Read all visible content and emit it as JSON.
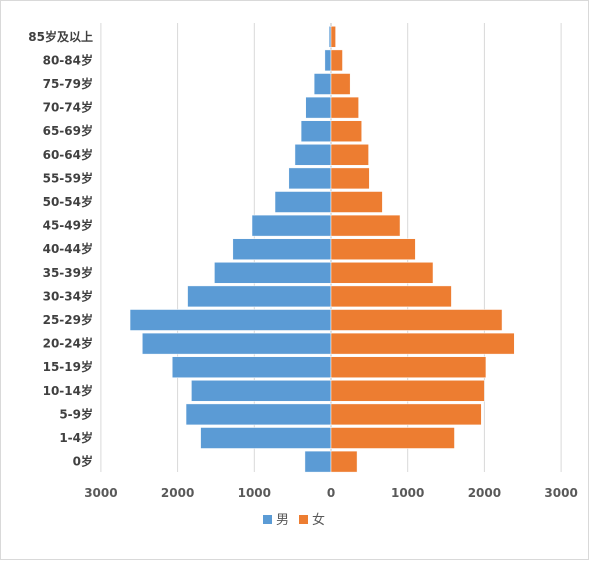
{
  "chart_data": {
    "type": "bar",
    "orientation": "horizontal-population-pyramid",
    "categories": [
      "85岁及以上",
      "80-84岁",
      "75-79岁",
      "70-74岁",
      "65-69岁",
      "60-64岁",
      "55-59岁",
      "50-54岁",
      "45-49岁",
      "40-44岁",
      "35-39岁",
      "30-34岁",
      "25-29岁",
      "20-24岁",
      "15-19岁",
      "10-14岁",
      "5-9岁",
      "1-4岁",
      "0岁"
    ],
    "series": [
      {
        "name": "男",
        "color": "#5b9bd5",
        "values": [
          25,
          80,
          220,
          330,
          390,
          470,
          550,
          730,
          1030,
          1280,
          1520,
          1870,
          2620,
          2460,
          2070,
          1820,
          1890,
          1700,
          340
        ]
      },
      {
        "name": "女",
        "color": "#ed7d31",
        "values": [
          60,
          150,
          250,
          360,
          400,
          490,
          500,
          670,
          900,
          1100,
          1330,
          1570,
          2230,
          2390,
          2020,
          2000,
          1960,
          1610,
          340
        ]
      }
    ],
    "xaxis_ticks": [
      "3000",
      "2000",
      "1000",
      "0",
      "1000",
      "2000",
      "3000"
    ],
    "xlim": [
      -3000,
      3000
    ],
    "grid": "vertical",
    "legend_position": "bottom"
  }
}
